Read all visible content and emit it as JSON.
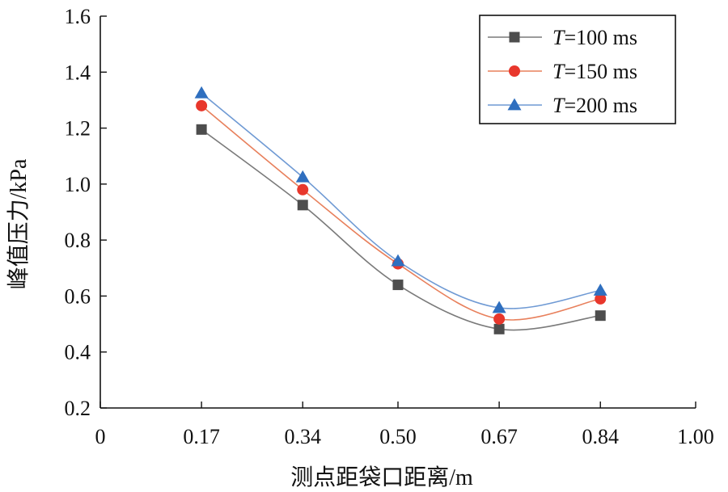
{
  "chart_data": {
    "type": "line",
    "title": "",
    "xlabel": "测点距袋口距离/m",
    "ylabel": "峰值压力/kPa",
    "x_ticks": [
      "0",
      "0.17",
      "0.34",
      "0.50",
      "0.67",
      "0.84",
      "1.00"
    ],
    "y_ticks": [
      "0.2",
      "0.4",
      "0.6",
      "0.8",
      "1.0",
      "1.2",
      "1.4",
      "1.6"
    ],
    "xlim": [
      0,
      1.0
    ],
    "ylim": [
      0.2,
      1.6
    ],
    "x": [
      0.17,
      0.34,
      0.5,
      0.67,
      0.84
    ],
    "series": [
      {
        "name_var": "T",
        "name_rest": "=100 ms",
        "marker": "square",
        "color": "#4d4d4d",
        "line_color": "#7a7a7a",
        "values": [
          1.195,
          0.925,
          0.64,
          0.482,
          0.53
        ]
      },
      {
        "name_var": "T",
        "name_rest": "=150 ms",
        "marker": "circle",
        "color": "#e8372c",
        "line_color": "#e8805c",
        "values": [
          1.28,
          0.98,
          0.715,
          0.518,
          0.59
        ]
      },
      {
        "name_var": "T",
        "name_rest": "=200 ms",
        "marker": "triangle",
        "color": "#2f6fbf",
        "line_color": "#6f9ad4",
        "values": [
          1.325,
          1.025,
          0.725,
          0.558,
          0.62
        ]
      }
    ],
    "legend_position": "top-right",
    "grid": false
  }
}
